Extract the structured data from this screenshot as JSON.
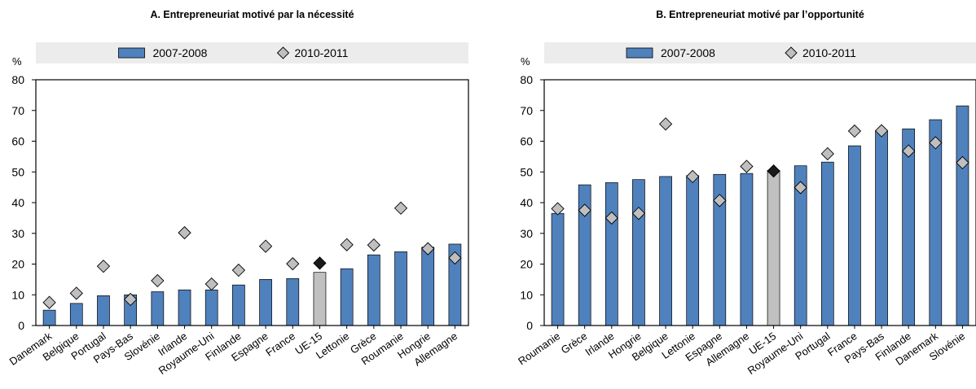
{
  "colors": {
    "bar": "#4f81bd",
    "bar_highlight": "#c0c0c0",
    "marker": "#bfbfbf",
    "marker_highlight": "#1a1a1a",
    "legend_bg": "#ececec"
  },
  "chart_data": [
    {
      "type": "bar",
      "title": "A. Entrepreneuriat motivé par la nécessité",
      "ylabel": "%",
      "ylim": [
        0,
        80
      ],
      "yticks": [
        0,
        10,
        20,
        30,
        40,
        50,
        60,
        70,
        80
      ],
      "grid": false,
      "legend_position": "top",
      "highlight": "UE-15",
      "categories": [
        "Danemark",
        "Belgique",
        "Portugal",
        "Pays-Bas",
        "Slovénie",
        "Irlande",
        "Royaume-Uni",
        "Finlande",
        "Espagne",
        "France",
        "UE-15",
        "Lettonie",
        "Grèce",
        "Roumanie",
        "Hongrie",
        "Allemagne"
      ],
      "series": [
        {
          "name": "2007-2008",
          "kind": "bar",
          "values": [
            5,
            7.2,
            9.7,
            10,
            11,
            11.6,
            11.6,
            13.2,
            15,
            15.3,
            17.3,
            18.5,
            23,
            24,
            25.5,
            26.5
          ]
        },
        {
          "name": "2010-2011",
          "kind": "diamond",
          "values": [
            7.5,
            10.5,
            19.3,
            8.5,
            14.6,
            30.2,
            13.5,
            18,
            25.8,
            20.1,
            20.3,
            26.3,
            26.2,
            38.2,
            25,
            22
          ]
        }
      ]
    },
    {
      "type": "bar",
      "title": "B. Entrepreneuriat motivé par l’opportunité",
      "ylabel": "%",
      "ylim": [
        0,
        80
      ],
      "yticks": [
        0,
        10,
        20,
        30,
        40,
        50,
        60,
        70,
        80
      ],
      "grid": false,
      "legend_position": "top",
      "highlight": "UE-15",
      "categories": [
        "Roumanie",
        "Grèce",
        "Irlande",
        "Hongrie",
        "Belgique",
        "Lettonie",
        "Espagne",
        "Allemagne",
        "UE-15",
        "Royaume-Uni",
        "Portugal",
        "France",
        "Pays-Bas",
        "Finlande",
        "Danemark",
        "Slovénie"
      ],
      "series": [
        {
          "name": "2007-2008",
          "kind": "bar",
          "values": [
            36.5,
            45.8,
            46.5,
            47.5,
            48.5,
            48.8,
            49.2,
            49.5,
            50.5,
            52,
            53.2,
            58.5,
            63.2,
            64,
            67,
            71.5
          ]
        },
        {
          "name": "2010-2011",
          "kind": "diamond",
          "values": [
            38,
            37.5,
            35,
            36.5,
            65.6,
            48.5,
            40.7,
            51.8,
            50.3,
            44.9,
            55.9,
            63.3,
            63.4,
            56.8,
            59.5,
            53
          ]
        }
      ]
    }
  ]
}
